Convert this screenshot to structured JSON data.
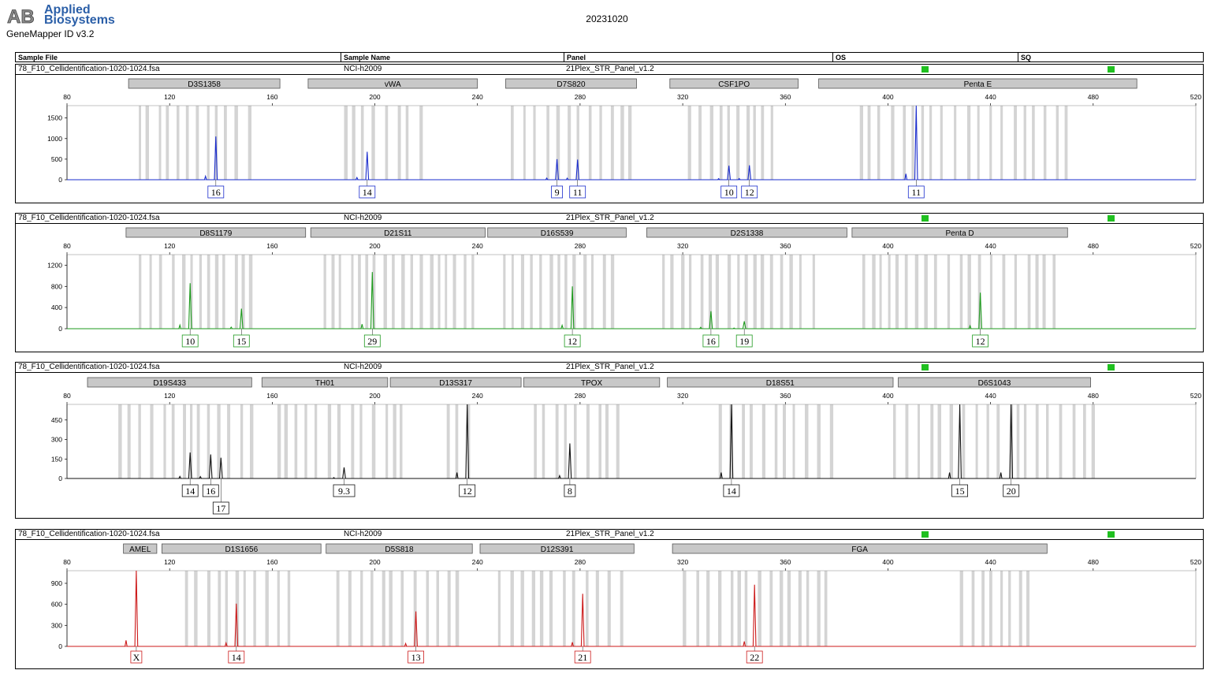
{
  "brand": {
    "line1": "Applied",
    "line2": "Biosystems",
    "logo_text": "AB",
    "app": "GeneMapper ID v3.2",
    "logo-color": "#2b5fa8"
  },
  "run_date": "20231020",
  "header": {
    "cols": [
      "Sample File",
      "Sample Name",
      "Panel",
      "OS",
      "SQ"
    ]
  },
  "colors": {
    "blue": "#1a2ccc",
    "green": "#1e9a1e",
    "black": "#111111",
    "red": "#cc1a1a",
    "bin": "#d4d4d4",
    "quality_ok": "#20c020"
  },
  "chart_data": [
    {
      "type": "line",
      "dye": "blue",
      "color": "#1a2ccc",
      "sample_file": "78_F10_Cellidentification-1020-1024.fsa",
      "sample_name": "NCI-h2009",
      "panel": "21Plex_STR_Panel_v1.2",
      "os_status": "pass",
      "sq_status": "pass",
      "xlim": [
        80,
        520
      ],
      "xticks": [
        80,
        120,
        160,
        200,
        240,
        280,
        320,
        360,
        400,
        440,
        480,
        520
      ],
      "ylim": [
        0,
        1800
      ],
      "yticks": [
        0,
        500,
        1000,
        1500
      ],
      "markers": [
        {
          "name": "D3S1358",
          "start": 104,
          "end": 163
        },
        {
          "name": "vWA",
          "start": 174,
          "end": 240
        },
        {
          "name": "D7S820",
          "start": 251,
          "end": 302
        },
        {
          "name": "CSF1PO",
          "start": 315,
          "end": 365
        },
        {
          "name": "Penta E",
          "start": 373,
          "end": 497
        }
      ],
      "bin_ranges": [
        [
          108,
          155
        ],
        [
          188,
          222
        ],
        [
          253,
          300
        ],
        [
          322,
          358
        ],
        [
          389,
          470
        ]
      ],
      "peaks": [
        {
          "x": 138,
          "y": 1050,
          "label": "16"
        },
        {
          "x": 197,
          "y": 680,
          "label": "14"
        },
        {
          "x": 271,
          "y": 500,
          "label": "9"
        },
        {
          "x": 279,
          "y": 490,
          "label": "11"
        },
        {
          "x": 338,
          "y": 340,
          "label": "10"
        },
        {
          "x": 346,
          "y": 350,
          "label": "12"
        },
        {
          "x": 411,
          "y": 1800,
          "label": "11"
        }
      ]
    },
    {
      "type": "line",
      "dye": "green",
      "color": "#1e9a1e",
      "sample_file": "78_F10_Cellidentification-1020-1024.fsa",
      "sample_name": "NCI-h2009",
      "panel": "21Plex_STR_Panel_v1.2",
      "os_status": "pass",
      "sq_status": "pass",
      "xlim": [
        80,
        520
      ],
      "xticks": [
        80,
        120,
        160,
        200,
        240,
        280,
        320,
        360,
        400,
        440,
        480,
        520
      ],
      "ylim": [
        0,
        1400
      ],
      "yticks": [
        0,
        400,
        800,
        1200
      ],
      "markers": [
        {
          "name": "D8S1179",
          "start": 103,
          "end": 173
        },
        {
          "name": "D21S11",
          "start": 175,
          "end": 243
        },
        {
          "name": "D16S539",
          "start": 244,
          "end": 298
        },
        {
          "name": "D2S1338",
          "start": 306,
          "end": 384
        },
        {
          "name": "Penta D",
          "start": 386,
          "end": 470
        }
      ],
      "bin_ranges": [
        [
          108,
          152
        ],
        [
          180,
          240
        ],
        [
          250,
          294
        ],
        [
          312,
          372
        ],
        [
          390,
          465
        ]
      ],
      "peaks": [
        {
          "x": 128,
          "y": 860,
          "label": "10"
        },
        {
          "x": 148,
          "y": 380,
          "label": "15"
        },
        {
          "x": 199,
          "y": 1070,
          "label": "29"
        },
        {
          "x": 277,
          "y": 800,
          "label": "12"
        },
        {
          "x": 331,
          "y": 330,
          "label": "16"
        },
        {
          "x": 344,
          "y": 140,
          "label": "19"
        },
        {
          "x": 436,
          "y": 680,
          "label": "12"
        }
      ]
    },
    {
      "type": "line",
      "dye": "black",
      "color": "#111111",
      "sample_file": "78_F10_Cellidentification-1020-1024.fsa",
      "sample_name": "NCI-h2009",
      "panel": "21Plex_STR_Panel_v1.2",
      "os_status": "pass",
      "sq_status": "pass",
      "xlim": [
        80,
        520
      ],
      "xticks": [
        80,
        120,
        160,
        200,
        240,
        280,
        320,
        360,
        400,
        440,
        480,
        520
      ],
      "ylim": [
        0,
        570
      ],
      "yticks": [
        0,
        150,
        300,
        450
      ],
      "markers": [
        {
          "name": "D19S433",
          "start": 88,
          "end": 152
        },
        {
          "name": "TH01",
          "start": 156,
          "end": 205
        },
        {
          "name": "D13S317",
          "start": 206,
          "end": 257
        },
        {
          "name": "TPOX",
          "start": 258,
          "end": 311
        },
        {
          "name": "D18S51",
          "start": 314,
          "end": 402
        },
        {
          "name": "D6S1043",
          "start": 404,
          "end": 479
        }
      ],
      "bin_ranges": [
        [
          100,
          152
        ],
        [
          162,
          210
        ],
        [
          228,
          240
        ],
        [
          262,
          296
        ],
        [
          334,
          380
        ],
        [
          402,
          480
        ]
      ],
      "peaks": [
        {
          "x": 128,
          "y": 200,
          "label": "14"
        },
        {
          "x": 136,
          "y": 185,
          "label": "16"
        },
        {
          "x": 140,
          "y": 160,
          "label": "17"
        },
        {
          "x": 188,
          "y": 85,
          "label": "9.3"
        },
        {
          "x": 236,
          "y": 570,
          "label": "12"
        },
        {
          "x": 276,
          "y": 270,
          "label": "8"
        },
        {
          "x": 339,
          "y": 570,
          "label": "14"
        },
        {
          "x": 428,
          "y": 570,
          "label": "15"
        },
        {
          "x": 448,
          "y": 570,
          "label": "20"
        }
      ]
    },
    {
      "type": "line",
      "dye": "red",
      "color": "#cc1a1a",
      "sample_file": "78_F10_Cellidentification-1020-1024.fsa",
      "sample_name": "NCI-h2009",
      "panel": "21Plex_STR_Panel_v1.2",
      "os_status": "pass",
      "sq_status": "pass",
      "xlim": [
        80,
        520
      ],
      "xticks": [
        80,
        120,
        160,
        200,
        240,
        280,
        320,
        360,
        400,
        440,
        480,
        520
      ],
      "ylim": [
        0,
        1080
      ],
      "yticks": [
        0,
        300,
        600,
        900
      ],
      "markers": [
        {
          "name": "AMEL",
          "start": 102,
          "end": 115
        },
        {
          "name": "D1S1656",
          "start": 117,
          "end": 179
        },
        {
          "name": "D5S818",
          "start": 181,
          "end": 238
        },
        {
          "name": "D12S391",
          "start": 241,
          "end": 301
        },
        {
          "name": "FGA",
          "start": 316,
          "end": 462
        }
      ],
      "bin_ranges": [
        [
          126,
          170
        ],
        [
          185,
          234
        ],
        [
          248,
          296
        ],
        [
          320,
          378
        ],
        [
          428,
          456
        ]
      ],
      "peaks": [
        {
          "x": 107,
          "y": 1080,
          "label": "X"
        },
        {
          "x": 146,
          "y": 610,
          "label": "14"
        },
        {
          "x": 216,
          "y": 500,
          "label": "13"
        },
        {
          "x": 281,
          "y": 750,
          "label": "21"
        },
        {
          "x": 348,
          "y": 880,
          "label": "22"
        }
      ]
    }
  ]
}
